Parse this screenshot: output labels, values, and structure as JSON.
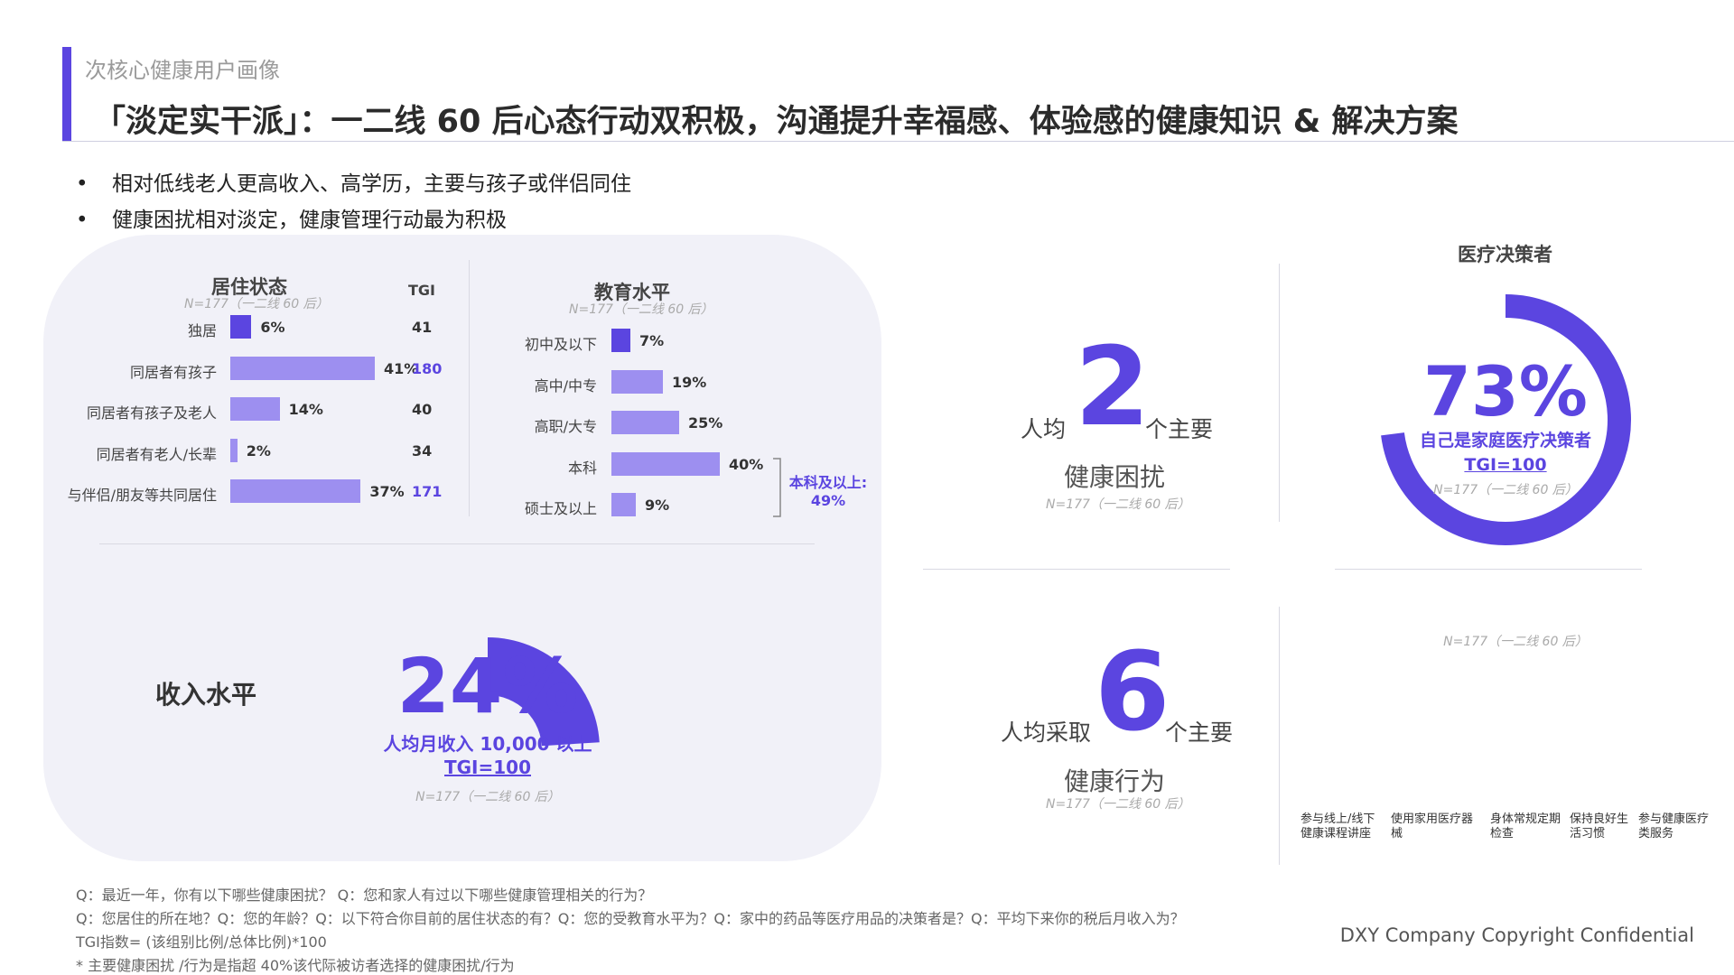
{
  "header": {
    "subtitle": "次核心健康用户画像",
    "title": "「淡定实干派」：一二线 60 后心态行动双积极，沟通提升幸福感、体验感的健康知识 & 解决方案"
  },
  "bullets": [
    "相对低线老人更高收入、高学历，主要与孩子或伴侣同住",
    "健康困扰相对淡定，健康管理行动最为积极"
  ],
  "colors": {
    "accent": "#5b45e0",
    "bar_light": "#9d8ff0",
    "panel": "#f1f1f8"
  },
  "chart_data": [
    {
      "type": "bar",
      "orientation": "horizontal",
      "title": "居住状态",
      "sample": "N=177（一二线 60 后）",
      "tgi_header": "TGI",
      "categories": [
        "独居",
        "同居者有孩子",
        "同居者有孩子及老人",
        "同居者有老人/长辈",
        "与伴侣/朋友等共同居住"
      ],
      "values": [
        6,
        41,
        14,
        2,
        37
      ],
      "value_labels": [
        "6%",
        "41%",
        "14%",
        "2%",
        "37%"
      ],
      "tgi": [
        "41",
        "180",
        "40",
        "34",
        "171"
      ],
      "tgi_highlight": [
        false,
        true,
        false,
        false,
        true
      ],
      "xlim": [
        0,
        41
      ]
    },
    {
      "type": "bar",
      "orientation": "horizontal",
      "title": "教育水平",
      "sample": "N=177（一二线 60 后）",
      "categories": [
        "初中及以下",
        "高中/中专",
        "高职/大专",
        "本科",
        "硕士及以上"
      ],
      "values": [
        7,
        19,
        25,
        40,
        9
      ],
      "value_labels": [
        "7%",
        "19%",
        "25%",
        "40%",
        "9%"
      ],
      "annotation": {
        "line1": "本科及以上:",
        "line2": "49%"
      },
      "xlim": [
        0,
        40
      ]
    },
    {
      "type": "pie",
      "title": "收入水平",
      "value": 24,
      "value_label": "24%",
      "desc": "人均月收入 10,000 以上",
      "tgi": "TGI=100",
      "sample": "N=177（一二线 60 后）"
    },
    {
      "type": "pie",
      "title": "医疗决策者",
      "value": 73,
      "value_label": "73%",
      "desc": "自己是家庭医疗决策者",
      "tgi": "TGI=100",
      "sample": "N=177（一二线 60 后）"
    }
  ],
  "stats": {
    "troubles": {
      "prefix": "人均",
      "number": "2",
      "suffix": "个主要",
      "label": "健康困扰",
      "sample": "N=177（一二线 60 后）"
    },
    "actions": {
      "prefix": "人均采取",
      "number": "6",
      "suffix": "个主要",
      "label": "健康行为",
      "sample": "N=177（一二线 60 后）"
    }
  },
  "behaviors": {
    "sample": "N=177（一二线 60 后）",
    "labels": [
      "参与线上/线下健康课程讲座",
      "使用家用医疗器械",
      "身体常规定期检查",
      "保持良好生活习惯",
      "参与健康医疗类服务"
    ]
  },
  "footnotes": [
    "Q：最近一年，你有以下哪些健康困扰？ Q：您和家人有过以下哪些健康管理相关的行为？",
    "Q：您居住的所在地？Q：您的年龄？Q：以下符合你目前的居住状态的有？Q：您的受教育水平为？Q：家中的药品等医疗用品的决策者是？Q：平均下来你的税后月收入为？",
    "TGI指数= (该组别比例/总体比例)*100",
    "* 主要健康困扰 /行为是指超 40%该代际被访者选择的健康困扰/行为"
  ],
  "copyright": "DXY Company Copyright Confidential"
}
